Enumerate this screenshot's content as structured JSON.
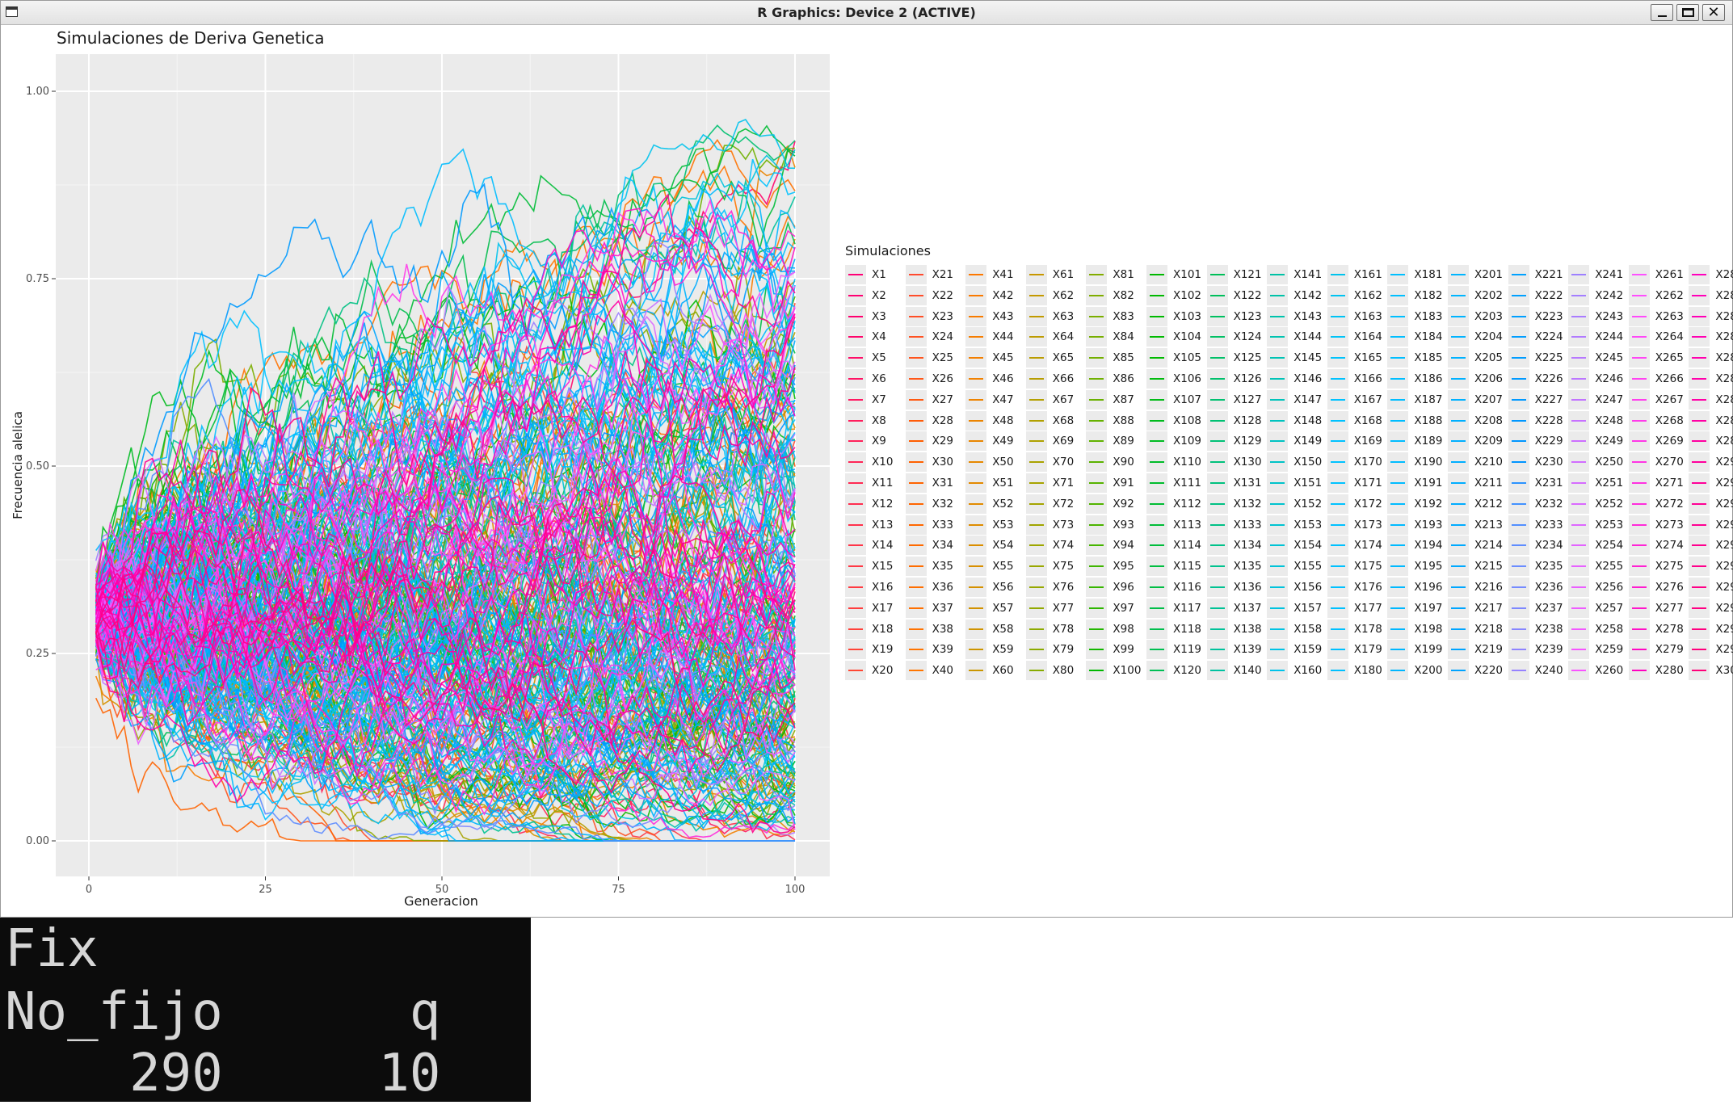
{
  "window": {
    "title": "R Graphics: Device 2 (ACTIVE)"
  },
  "console": {
    "line1": "Fix",
    "line2": "No_fijo      q",
    "line3": "    290     10"
  },
  "chart_data": {
    "type": "line",
    "title": "Simulaciones de Deriva Genetica",
    "xlabel": "Generacion",
    "ylabel": "Frecuencia alelica",
    "xlim": [
      0,
      100
    ],
    "ylim": [
      0,
      1
    ],
    "xticks": [
      "0",
      "25",
      "50",
      "75",
      "100"
    ],
    "yticks": [
      "0.00",
      "0.25",
      "0.50",
      "0.75",
      "1.00"
    ],
    "grid": true,
    "legend": {
      "title": "Simulaciones",
      "placement": "right",
      "series_count": 300
    },
    "series_prefix": "X",
    "start_frequency": 0.3,
    "generations": 100,
    "lost_count_shown": 290,
    "fixed_count_shown": 10,
    "final_frequency_examples": [
      {
        "name": "highest",
        "value": 0.93
      },
      {
        "name": "second",
        "value": 0.86
      },
      {
        "name": "third",
        "value": 0.77
      }
    ]
  }
}
